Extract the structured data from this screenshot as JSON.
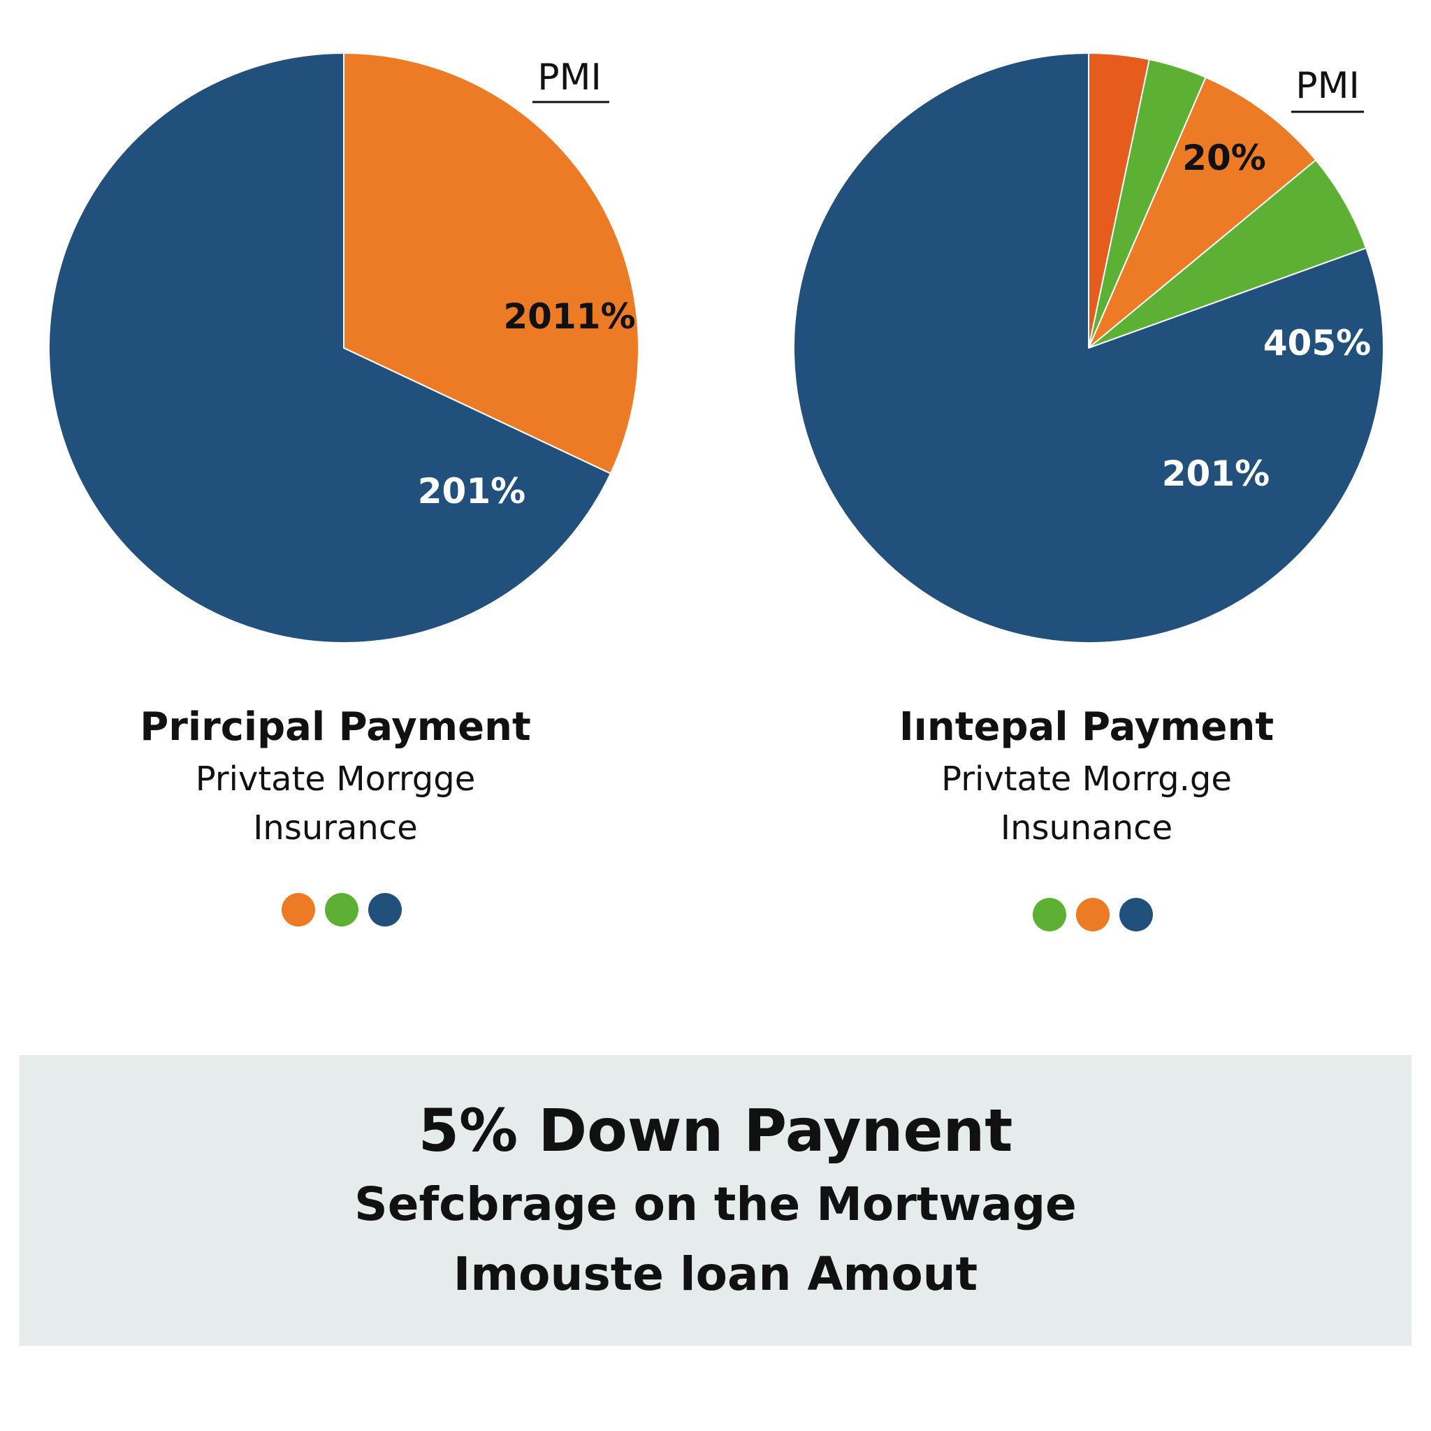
{
  "colors": {
    "blue": "#22507c",
    "orange": "#ed7a24",
    "dark_orange": "#e65c1c",
    "green": "#5cb135",
    "white_text": "#ffffff",
    "dark_text": "#111111"
  },
  "chart_data": [
    {
      "type": "pie",
      "annotation": "PMI",
      "slices": [
        {
          "value": 32,
          "color": "#ed7a24",
          "label": "2011%",
          "label_color": "#111111"
        },
        {
          "value": 68,
          "color": "#22507c",
          "label": "201%",
          "label_color": "#ffffff"
        }
      ],
      "legend_colors": [
        "#ed7a24",
        "#5cb135",
        "#22507c"
      ]
    },
    {
      "type": "pie",
      "annotation": "PMI",
      "slices": [
        {
          "value": 3.3,
          "color": "#e65c1c",
          "label": "",
          "label_color": "#111111"
        },
        {
          "value": 3.2,
          "color": "#5cb135",
          "label": "",
          "label_color": "#111111"
        },
        {
          "value": 7.5,
          "color": "#ed7a24",
          "label": "20%",
          "label_color": "#111111"
        },
        {
          "value": 5.5,
          "color": "#5cb135",
          "label": "",
          "label_color": "#111111"
        },
        {
          "value": 80.5,
          "color": "#22507c",
          "label": "",
          "label_color": "#ffffff"
        }
      ],
      "extra_labels": [
        {
          "text": "405%",
          "color": "#ffffff"
        },
        {
          "text": "201%",
          "color": "#ffffff"
        }
      ],
      "legend_colors": [
        "#5cb135",
        "#ed7a24",
        "#22507c"
      ]
    }
  ],
  "captions": [
    {
      "title": "Prircipal Payment",
      "subtitle": "Privtate Morrgge\nInsurance"
    },
    {
      "title": "Iıntepal Payment",
      "subtitle": "Privtate Morrg.ge\nInsunance"
    }
  ],
  "summary": {
    "line1": "5% Down Paynent",
    "line2": "Sefcbrage on the Mortwage",
    "line3": "Imouste loan Amout"
  }
}
